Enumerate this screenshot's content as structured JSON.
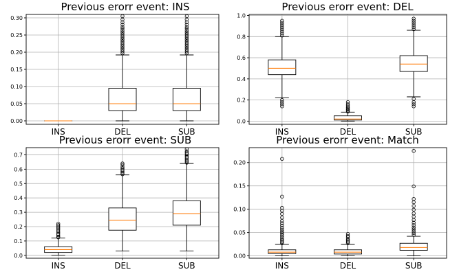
{
  "chart_data": [
    {
      "type": "box",
      "title": "Previous erorr event: INS",
      "categories": [
        "INS",
        "DEL",
        "SUB"
      ],
      "ylim": [
        -0.01,
        0.31
      ],
      "yticks": [
        0.0,
        0.05,
        0.1,
        0.15,
        0.2,
        0.25,
        0.3
      ],
      "ytick_labels": [
        "0.00",
        "0.05",
        "0.10",
        "0.15",
        "0.20",
        "0.25",
        "0.30"
      ],
      "grid": true,
      "boxes": [
        {
          "category": "INS",
          "whisker_low": 0.0,
          "q1": 0.0,
          "median": 0.0,
          "q3": 0.0,
          "whisker_high": 0.0,
          "outliers": []
        },
        {
          "category": "DEL",
          "whisker_low": 0.0,
          "q1": 0.03,
          "median": 0.05,
          "q3": 0.095,
          "whisker_high": 0.192,
          "outliers": [
            0.197,
            0.202,
            0.207,
            0.212,
            0.217,
            0.222,
            0.227,
            0.232,
            0.237,
            0.242,
            0.247,
            0.252,
            0.257,
            0.262,
            0.268,
            0.273,
            0.28,
            0.287,
            0.295,
            0.305
          ]
        },
        {
          "category": "SUB",
          "whisker_low": 0.0,
          "q1": 0.03,
          "median": 0.05,
          "q3": 0.095,
          "whisker_high": 0.192,
          "outliers": [
            0.197,
            0.202,
            0.207,
            0.212,
            0.217,
            0.222,
            0.227,
            0.232,
            0.237,
            0.242,
            0.247,
            0.252,
            0.257,
            0.262,
            0.268,
            0.273,
            0.28,
            0.287,
            0.295,
            0.305
          ]
        }
      ]
    },
    {
      "type": "box",
      "title": "Previous erorr event: DEL",
      "categories": [
        "INS",
        "DEL",
        "SUB"
      ],
      "ylim": [
        -0.03,
        1.01
      ],
      "yticks": [
        0.0,
        0.2,
        0.4,
        0.6,
        0.8,
        1.0
      ],
      "ytick_labels": [
        "0.0",
        "0.2",
        "0.4",
        "0.6",
        "0.8",
        "1.0"
      ],
      "grid": true,
      "boxes": [
        {
          "category": "INS",
          "whisker_low": 0.22,
          "q1": 0.44,
          "median": 0.5,
          "q3": 0.58,
          "whisker_high": 0.8,
          "outliers": [
            0.14,
            0.16,
            0.18,
            0.2,
            0.81,
            0.83,
            0.85,
            0.87,
            0.89,
            0.91,
            0.93,
            0.95
          ]
        },
        {
          "category": "DEL",
          "whisker_low": 0.0,
          "q1": 0.01,
          "median": 0.02,
          "q3": 0.05,
          "whisker_high": 0.085,
          "outliers": [
            0.09,
            0.1,
            0.11,
            0.12,
            0.13,
            0.145,
            0.16,
            0.18
          ]
        },
        {
          "category": "SUB",
          "whisker_low": 0.23,
          "q1": 0.47,
          "median": 0.54,
          "q3": 0.62,
          "whisker_high": 0.86,
          "outliers": [
            0.14,
            0.16,
            0.18,
            0.21,
            0.87,
            0.89,
            0.91,
            0.93,
            0.95,
            0.97
          ]
        }
      ]
    },
    {
      "type": "box",
      "title": "Previous erorr event: SUB",
      "categories": [
        "INS",
        "DEL",
        "SUB"
      ],
      "ylim": [
        -0.02,
        0.75
      ],
      "yticks": [
        0.0,
        0.1,
        0.2,
        0.3,
        0.4,
        0.5,
        0.6,
        0.7
      ],
      "ytick_labels": [
        "0.0",
        "0.1",
        "0.2",
        "0.3",
        "0.4",
        "0.5",
        "0.6",
        "0.7"
      ],
      "grid": true,
      "boxes": [
        {
          "category": "INS",
          "whisker_low": 0.0,
          "q1": 0.02,
          "median": 0.04,
          "q3": 0.06,
          "whisker_high": 0.12,
          "outliers": [
            0.125,
            0.13,
            0.14,
            0.15,
            0.16,
            0.17,
            0.18,
            0.19,
            0.2,
            0.21,
            0.22
          ]
        },
        {
          "category": "DEL",
          "whisker_low": 0.03,
          "q1": 0.175,
          "median": 0.245,
          "q3": 0.33,
          "whisker_high": 0.56,
          "outliers": [
            0.565,
            0.575,
            0.585,
            0.595,
            0.605,
            0.615,
            0.63,
            0.64
          ]
        },
        {
          "category": "SUB",
          "whisker_low": 0.03,
          "q1": 0.21,
          "median": 0.29,
          "q3": 0.38,
          "whisker_high": 0.64,
          "outliers": [
            0.645,
            0.655,
            0.665,
            0.675,
            0.685,
            0.695,
            0.705,
            0.715,
            0.725,
            0.74
          ]
        }
      ]
    },
    {
      "type": "box",
      "title": "Previous erorr event: Match",
      "categories": [
        "INS",
        "DEL",
        "SUB"
      ],
      "ylim": [
        -0.005,
        0.232
      ],
      "yticks": [
        0.0,
        0.05,
        0.1,
        0.15,
        0.2
      ],
      "ytick_labels": [
        "0.00",
        "0.05",
        "0.10",
        "0.15",
        "0.20"
      ],
      "grid": true,
      "boxes": [
        {
          "category": "INS",
          "whisker_low": 0.0,
          "q1": 0.005,
          "median": 0.008,
          "q3": 0.013,
          "whisker_high": 0.025,
          "outliers": [
            0.027,
            0.03,
            0.033,
            0.036,
            0.04,
            0.044,
            0.048,
            0.052,
            0.056,
            0.06,
            0.065,
            0.07,
            0.075,
            0.082,
            0.09,
            0.097,
            0.103,
            0.127,
            0.208
          ]
        },
        {
          "category": "DEL",
          "whisker_low": 0.0,
          "q1": 0.004,
          "median": 0.008,
          "q3": 0.013,
          "whisker_high": 0.025,
          "outliers": [
            0.027,
            0.03,
            0.033,
            0.036,
            0.04,
            0.043,
            0.047
          ]
        },
        {
          "category": "SUB",
          "whisker_low": 0.0,
          "q1": 0.012,
          "median": 0.018,
          "q3": 0.027,
          "whisker_high": 0.042,
          "outliers": [
            0.045,
            0.049,
            0.053,
            0.057,
            0.061,
            0.066,
            0.071,
            0.077,
            0.084,
            0.091,
            0.099,
            0.107,
            0.115,
            0.122,
            0.149,
            0.225
          ]
        }
      ]
    }
  ]
}
